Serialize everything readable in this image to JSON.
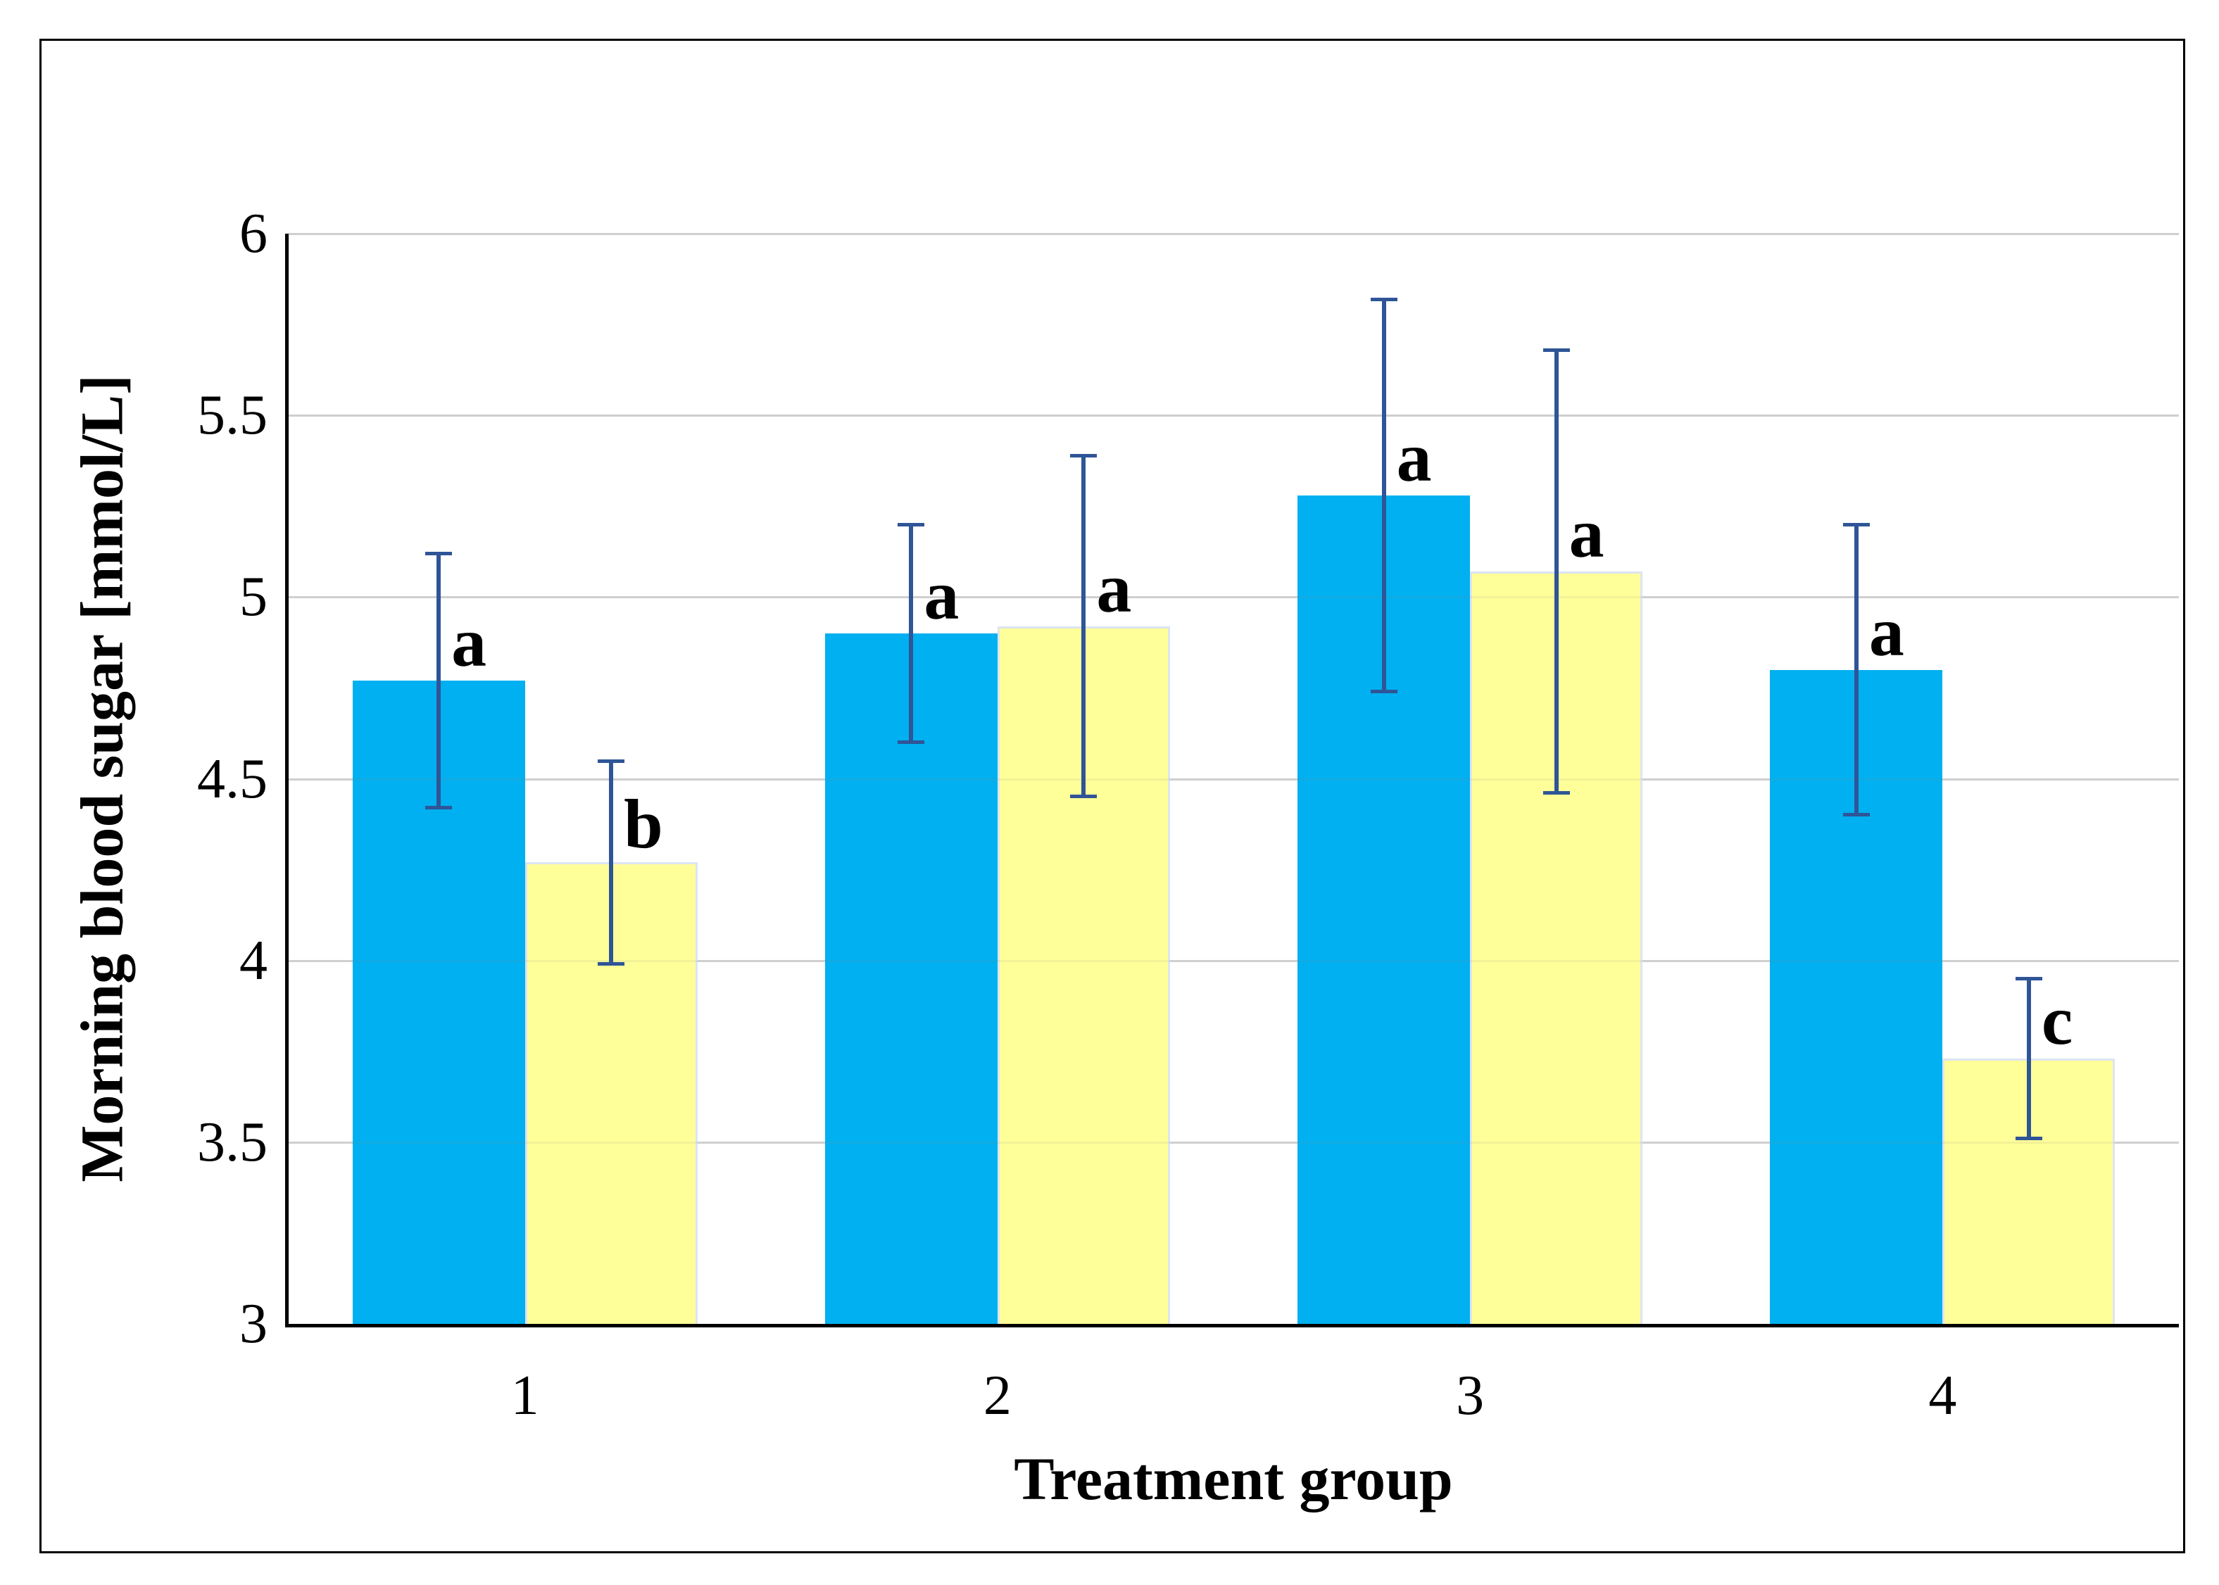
{
  "figure": {
    "background": "#FFFFFF",
    "border_color": "#000000"
  },
  "chart_data": {
    "type": "bar",
    "title": "",
    "xlabel": "Treatment group",
    "ylabel": "Morning blood sugar [mmol/L]",
    "categories": [
      "1",
      "2",
      "3",
      "4"
    ],
    "series": [
      {
        "name": "blue",
        "color": "#00B0F0",
        "values": [
          4.77,
          4.9,
          5.28,
          4.8
        ],
        "errors": [
          0.35,
          0.3,
          0.54,
          0.4
        ],
        "letters": [
          "a",
          "a",
          "a",
          "a"
        ]
      },
      {
        "name": "yellow",
        "color": "#FFFF99",
        "border_color": "#DCE5F1",
        "values": [
          4.27,
          4.92,
          5.07,
          3.73
        ],
        "errors": [
          0.28,
          0.47,
          0.61,
          0.22
        ],
        "letters": [
          "b",
          "a",
          "a",
          "c"
        ]
      }
    ],
    "ylim": [
      3,
      6
    ],
    "yticks": [
      3,
      3.5,
      4,
      4.5,
      5,
      5.5,
      6
    ],
    "ytick_step": 0.5,
    "grid": true,
    "legend": "none",
    "error_bar_color": "#2F5597",
    "gridline_color": "#D9D9D9",
    "axis_color": "#000000"
  }
}
